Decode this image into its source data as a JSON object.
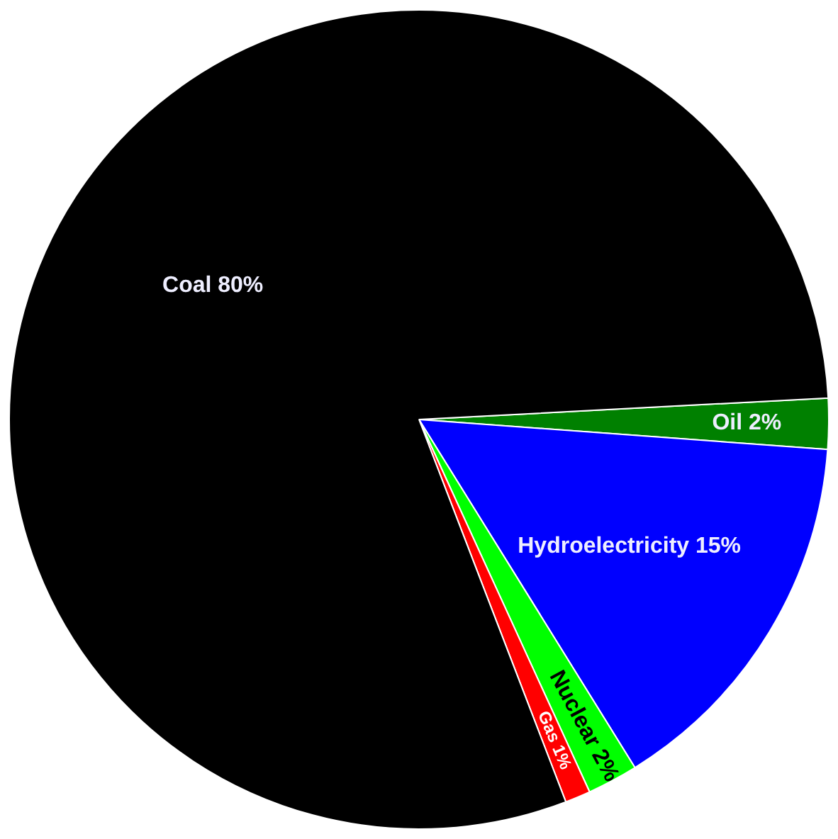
{
  "chart_data": {
    "type": "pie",
    "categories": [
      "Oil",
      "Hydroelectricity",
      "Nuclear",
      "Gas",
      "Coal"
    ],
    "values": [
      2,
      15,
      2,
      1,
      80
    ],
    "colors": [
      "#008000",
      "#0000ff",
      "#00ff00",
      "#ff0000",
      "#000000"
    ],
    "value_labels": [
      "2%",
      "15%",
      "2%",
      "1%",
      "80%"
    ],
    "legend": false
  }
}
